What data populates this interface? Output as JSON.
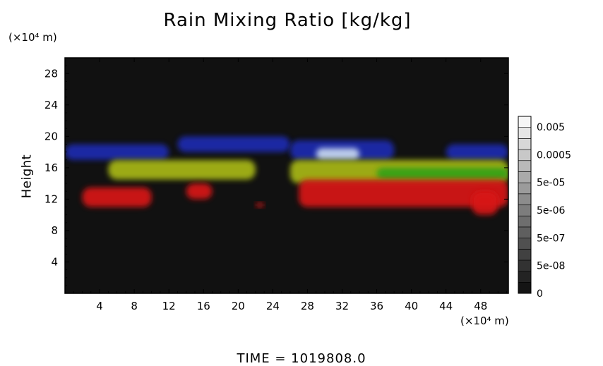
{
  "title": "Rain Mixing Ratio [kg/kg]",
  "y_unit": "(×10⁴ m)",
  "x_unit": "(×10⁴ m)",
  "ylabel": "Height",
  "footer": "TIME  =  1019808.0",
  "chart_data": {
    "type": "heatmap",
    "title": "Rain Mixing Ratio [kg/kg]",
    "xlabel": "",
    "ylabel": "Height",
    "x_ticks": [
      4,
      8,
      12,
      16,
      20,
      24,
      28,
      32,
      36,
      40,
      44,
      48
    ],
    "y_ticks": [
      4,
      8,
      12,
      16,
      20,
      24,
      28
    ],
    "xlim": [
      0,
      51.2
    ],
    "ylim": [
      0,
      30
    ],
    "colorbar": {
      "labels": [
        "0.005",
        "0.0005",
        "5e-05",
        "5e-06",
        "5e-07",
        "5e-08",
        "0"
      ],
      "levels": 16
    },
    "colors": {
      "background": "#111111",
      "high_layer": "#1a2ab0",
      "high_layer_peak": "#c8d8f0",
      "mid_layer": "#a8b818",
      "mid_layer_green": "#30a018",
      "low_layer": "#d81818"
    },
    "regions": [
      {
        "layer": "high_layer",
        "x": [
          0,
          12
        ],
        "y": [
          17,
          19
        ]
      },
      {
        "layer": "high_layer",
        "x": [
          13,
          26
        ],
        "y": [
          18,
          20
        ]
      },
      {
        "layer": "high_layer",
        "x": [
          26,
          38
        ],
        "y": [
          17,
          19.5
        ]
      },
      {
        "layer": "high_layer",
        "x": [
          44,
          51.2
        ],
        "y": [
          17,
          19
        ]
      },
      {
        "layer": "high_layer_peak",
        "x": [
          29,
          34
        ],
        "y": [
          17,
          18.5
        ]
      },
      {
        "layer": "mid_layer",
        "x": [
          5,
          22
        ],
        "y": [
          14.5,
          17
        ]
      },
      {
        "layer": "mid_layer",
        "x": [
          26,
          51.2
        ],
        "y": [
          14,
          17
        ]
      },
      {
        "layer": "mid_layer_green",
        "x": [
          36,
          51.2
        ],
        "y": [
          14.5,
          16
        ]
      },
      {
        "layer": "low_layer",
        "x": [
          2,
          10
        ],
        "y": [
          11,
          13.5
        ]
      },
      {
        "layer": "low_layer",
        "x": [
          14,
          17
        ],
        "y": [
          12,
          14
        ]
      },
      {
        "layer": "low_layer",
        "x": [
          22,
          23
        ],
        "y": [
          11,
          11.5
        ]
      },
      {
        "layer": "low_layer",
        "x": [
          27,
          51.2
        ],
        "y": [
          11,
          14.5
        ]
      },
      {
        "layer": "low_layer",
        "x": [
          47,
          50
        ],
        "y": [
          10,
          13
        ]
      }
    ]
  }
}
